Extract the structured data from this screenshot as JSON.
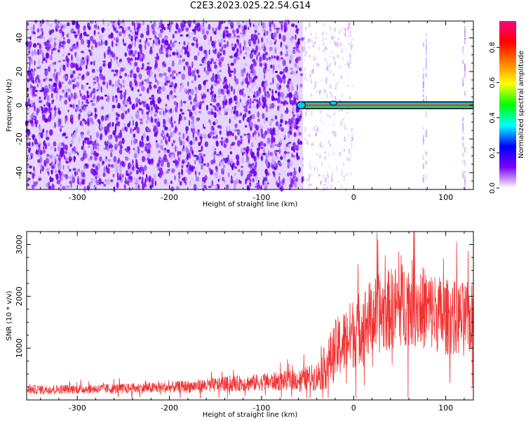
{
  "title": "C2E3.2023.025.22.54.G14",
  "chart_data": [
    {
      "type": "heatmap",
      "xlabel": "Height of straight line (km)",
      "ylabel": "Frequency (Hz)",
      "xlim": [
        -355,
        130
      ],
      "ylim": [
        -50,
        50
      ],
      "xticks": [
        -300,
        -200,
        -100,
        0,
        100
      ],
      "yticks": [
        -40,
        -20,
        0,
        20,
        40
      ],
      "noise_region_x": [
        -355,
        -55
      ],
      "signal_line": {
        "x_start": -60,
        "x_end": 130,
        "frequency": 0
      },
      "colorbar": {
        "label": "Normalized spectral amplitude",
        "ticks": [
          0.0,
          0.2,
          0.4,
          0.6,
          0.8
        ],
        "range": [
          0,
          0.95
        ],
        "colors": [
          "#ffffff",
          "#7b00ff",
          "#0000ff",
          "#00ffff",
          "#00ff00",
          "#ffff00",
          "#ff7f00",
          "#ff0000",
          "#ff0080"
        ]
      }
    },
    {
      "type": "line",
      "xlabel": "Height of straight line (km)",
      "ylabel": "SNR (10 * v/v)",
      "xlim": [
        -355,
        130
      ],
      "ylim": [
        0,
        3250
      ],
      "xticks": [
        -300,
        -200,
        -100,
        0,
        100
      ],
      "yticks": [
        1000,
        2000,
        3000
      ],
      "series_color": "#f03232",
      "envelope": {
        "x": [
          -355,
          -300,
          -250,
          -200,
          -150,
          -100,
          -60,
          -40,
          -30,
          -20,
          0,
          20,
          40,
          60,
          80,
          100,
          130
        ],
        "mid": [
          200,
          210,
          220,
          240,
          290,
          340,
          390,
          450,
          650,
          950,
          1300,
          1600,
          1750,
          1900,
          1750,
          1600,
          1550
        ],
        "spread": [
          90,
          90,
          100,
          110,
          140,
          170,
          200,
          280,
          450,
          600,
          700,
          750,
          800,
          850,
          800,
          750,
          700
        ]
      }
    }
  ]
}
